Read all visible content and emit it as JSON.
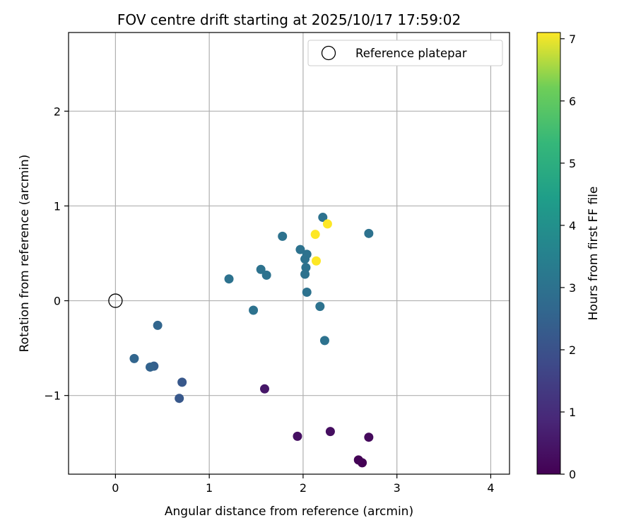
{
  "chart_data": {
    "type": "scatter",
    "title": "FOV centre drift starting at 2025/10/17 17:59:02",
    "xlabel": "Angular distance from reference (arcmin)",
    "ylabel": "Rotation from reference (arcmin)",
    "xlim": [
      -0.5,
      4.2
    ],
    "ylim": [
      -1.83,
      2.83
    ],
    "xticks": [
      0,
      1,
      2,
      3,
      4
    ],
    "yticks": [
      -1,
      0,
      1,
      2
    ],
    "xtick_labels": [
      "0",
      "1",
      "2",
      "3",
      "4"
    ],
    "ytick_labels": [
      "−1",
      "0",
      "1",
      "2"
    ],
    "grid": true,
    "legend": {
      "position": "top-right",
      "label": "Reference platepar"
    },
    "reference_point": {
      "x": 0,
      "y": 0
    },
    "colorbar": {
      "label": "Hours from first FF file",
      "range": [
        0,
        7.1
      ],
      "ticks": [
        0,
        1,
        2,
        3,
        4,
        5,
        6,
        7
      ],
      "tick_labels": [
        "0",
        "1",
        "2",
        "3",
        "4",
        "5",
        "6",
        "7"
      ],
      "colormap": "viridis"
    },
    "points": [
      {
        "x": 2.63,
        "y": -1.71,
        "hours": 0.0
      },
      {
        "x": 2.59,
        "y": -1.68,
        "hours": 0.05
      },
      {
        "x": 2.7,
        "y": -1.44,
        "hours": 0.2
      },
      {
        "x": 2.29,
        "y": -1.38,
        "hours": 0.3
      },
      {
        "x": 1.94,
        "y": -1.43,
        "hours": 0.35
      },
      {
        "x": 1.59,
        "y": -0.93,
        "hours": 0.5
      },
      {
        "x": 0.68,
        "y": -1.03,
        "hours": 2.2
      },
      {
        "x": 0.71,
        "y": -0.86,
        "hours": 2.2
      },
      {
        "x": 0.41,
        "y": -0.69,
        "hours": 2.4
      },
      {
        "x": 0.37,
        "y": -0.7,
        "hours": 2.5
      },
      {
        "x": 0.2,
        "y": -0.61,
        "hours": 2.6
      },
      {
        "x": 0.45,
        "y": -0.26,
        "hours": 2.6
      },
      {
        "x": 1.21,
        "y": 0.23,
        "hours": 3.0
      },
      {
        "x": 1.47,
        "y": -0.1,
        "hours": 3.0
      },
      {
        "x": 1.55,
        "y": 0.33,
        "hours": 3.0
      },
      {
        "x": 1.61,
        "y": 0.27,
        "hours": 3.0
      },
      {
        "x": 1.78,
        "y": 0.68,
        "hours": 3.0
      },
      {
        "x": 1.97,
        "y": 0.54,
        "hours": 3.0
      },
      {
        "x": 2.02,
        "y": 0.44,
        "hours": 3.0
      },
      {
        "x": 2.04,
        "y": 0.49,
        "hours": 3.0
      },
      {
        "x": 2.03,
        "y": 0.35,
        "hours": 3.0
      },
      {
        "x": 2.02,
        "y": 0.28,
        "hours": 3.0
      },
      {
        "x": 2.04,
        "y": 0.09,
        "hours": 3.0
      },
      {
        "x": 2.18,
        "y": -0.06,
        "hours": 3.0
      },
      {
        "x": 2.23,
        "y": -0.42,
        "hours": 3.0
      },
      {
        "x": 2.21,
        "y": 0.88,
        "hours": 3.0
      },
      {
        "x": 2.7,
        "y": 0.71,
        "hours": 3.0
      },
      {
        "x": 2.13,
        "y": 0.7,
        "hours": 7.1
      },
      {
        "x": 2.26,
        "y": 0.81,
        "hours": 7.1
      },
      {
        "x": 2.14,
        "y": 0.42,
        "hours": 7.1
      }
    ]
  }
}
